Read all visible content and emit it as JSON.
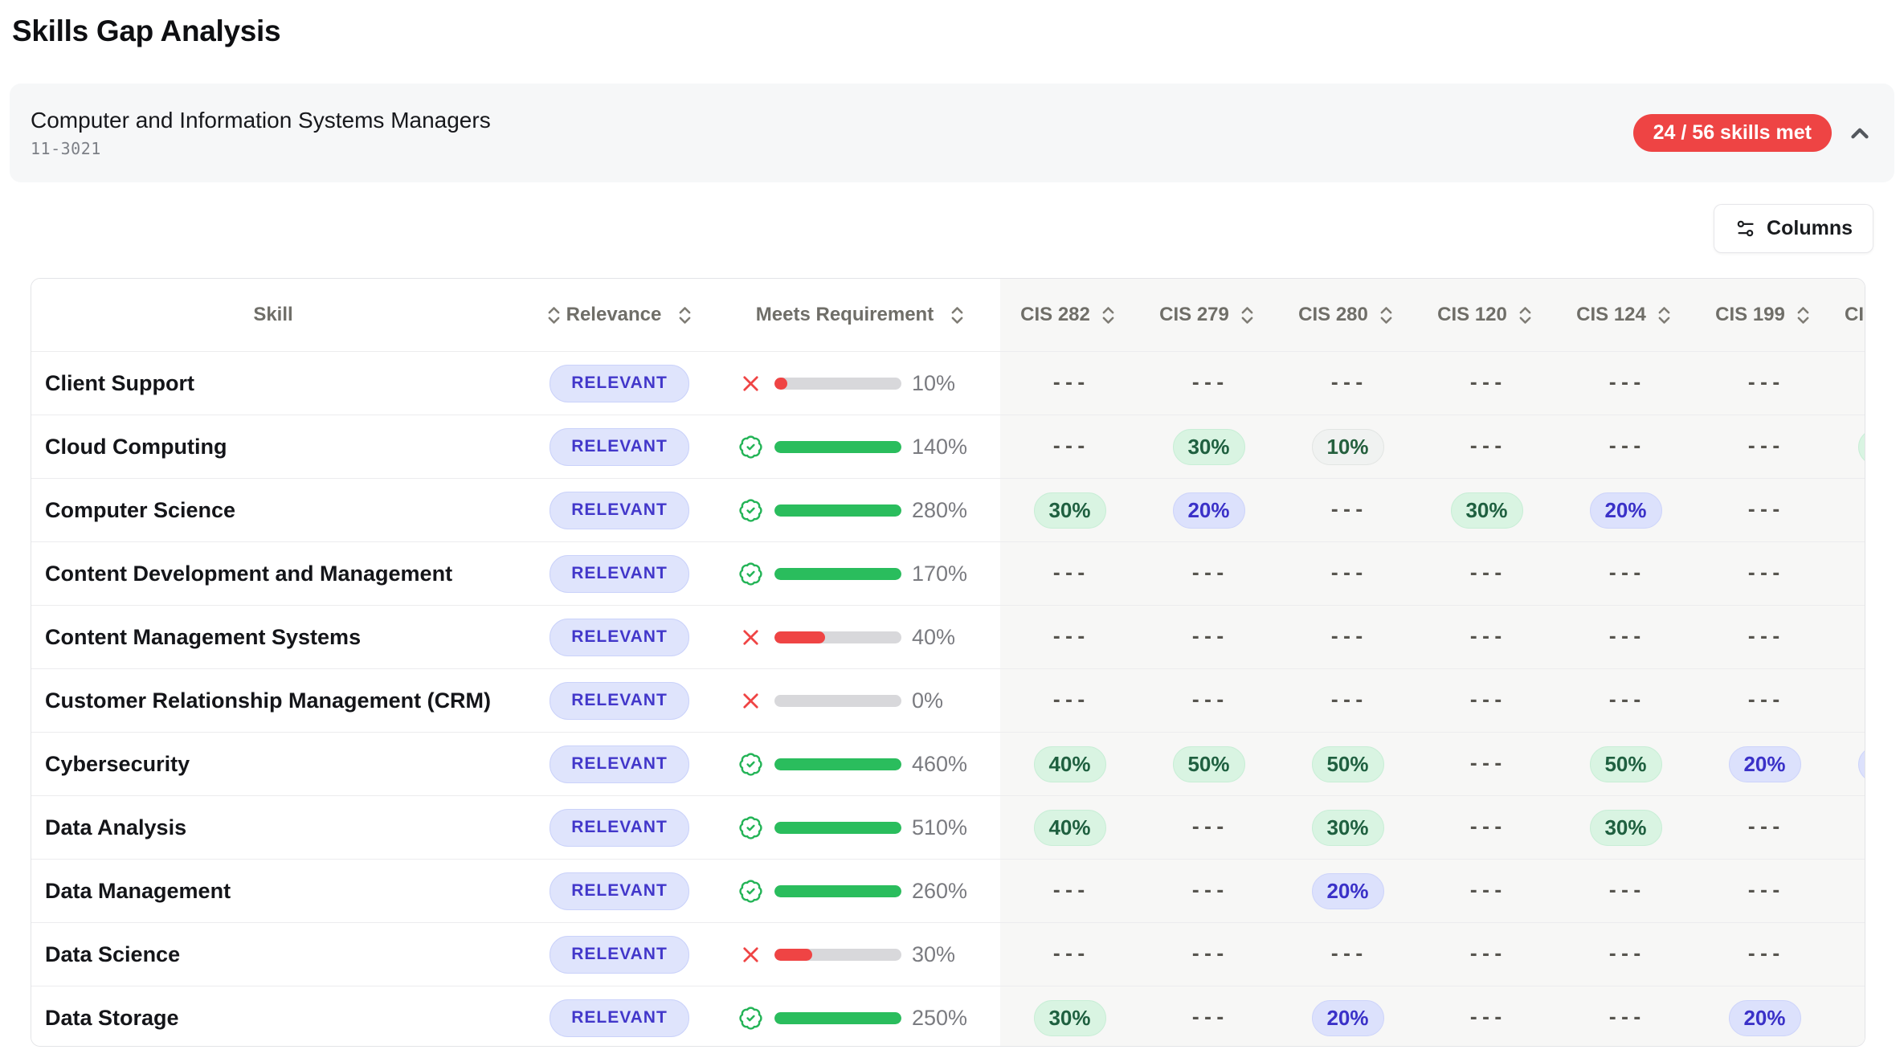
{
  "page_title": "Skills Gap Analysis",
  "occupation": {
    "name": "Computer and Information Systems Managers",
    "soc_code": "11-3021",
    "skills_met_badge": "24 / 56 skills met"
  },
  "toolbar": {
    "columns_button": "Columns"
  },
  "table": {
    "headers": {
      "skill": "Skill",
      "relevance": "Relevance",
      "meets_requirement": "Meets Requirement"
    },
    "course_columns": [
      "CIS 282",
      "CIS 279",
      "CIS 280",
      "CIS 120",
      "CIS 124",
      "CIS 199"
    ],
    "truncated_course_column": "CI",
    "empty_cell": "---",
    "rows": [
      {
        "skill": "Client Support",
        "relevance": "RELEVANT",
        "met": false,
        "meets_percent": "10%",
        "bar_percent": 10,
        "courses": [
          null,
          null,
          null,
          null,
          null,
          null
        ],
        "truncated_cell": null
      },
      {
        "skill": "Cloud Computing",
        "relevance": "RELEVANT",
        "met": true,
        "meets_percent": "140%",
        "bar_percent": 100,
        "courses": [
          null,
          {
            "value": "30%",
            "variant": "green"
          },
          {
            "value": "10%",
            "variant": "pale"
          },
          null,
          null,
          null
        ],
        "truncated_cell": {
          "variant": "green"
        }
      },
      {
        "skill": "Computer Science",
        "relevance": "RELEVANT",
        "met": true,
        "meets_percent": "280%",
        "bar_percent": 100,
        "courses": [
          {
            "value": "30%",
            "variant": "green"
          },
          {
            "value": "20%",
            "variant": "blue"
          },
          null,
          {
            "value": "30%",
            "variant": "green"
          },
          {
            "value": "20%",
            "variant": "blue"
          },
          null
        ],
        "truncated_cell": null
      },
      {
        "skill": "Content Development and Management",
        "relevance": "RELEVANT",
        "met": true,
        "meets_percent": "170%",
        "bar_percent": 100,
        "courses": [
          null,
          null,
          null,
          null,
          null,
          null
        ],
        "truncated_cell": null
      },
      {
        "skill": "Content Management Systems",
        "relevance": "RELEVANT",
        "met": false,
        "meets_percent": "40%",
        "bar_percent": 40,
        "courses": [
          null,
          null,
          null,
          null,
          null,
          null
        ],
        "truncated_cell": null
      },
      {
        "skill": "Customer Relationship Management (CRM)",
        "relevance": "RELEVANT",
        "met": false,
        "meets_percent": "0%",
        "bar_percent": 0,
        "courses": [
          null,
          null,
          null,
          null,
          null,
          null
        ],
        "truncated_cell": null
      },
      {
        "skill": "Cybersecurity",
        "relevance": "RELEVANT",
        "met": true,
        "meets_percent": "460%",
        "bar_percent": 100,
        "courses": [
          {
            "value": "40%",
            "variant": "green"
          },
          {
            "value": "50%",
            "variant": "green"
          },
          {
            "value": "50%",
            "variant": "green"
          },
          null,
          {
            "value": "50%",
            "variant": "green"
          },
          {
            "value": "20%",
            "variant": "blue"
          }
        ],
        "truncated_cell": {
          "variant": "blue"
        }
      },
      {
        "skill": "Data Analysis",
        "relevance": "RELEVANT",
        "met": true,
        "meets_percent": "510%",
        "bar_percent": 100,
        "courses": [
          {
            "value": "40%",
            "variant": "green"
          },
          null,
          {
            "value": "30%",
            "variant": "green"
          },
          null,
          {
            "value": "30%",
            "variant": "green"
          },
          null
        ],
        "truncated_cell": null
      },
      {
        "skill": "Data Management",
        "relevance": "RELEVANT",
        "met": true,
        "meets_percent": "260%",
        "bar_percent": 100,
        "courses": [
          null,
          null,
          {
            "value": "20%",
            "variant": "blue"
          },
          null,
          null,
          null
        ],
        "truncated_cell": null
      },
      {
        "skill": "Data Science",
        "relevance": "RELEVANT",
        "met": false,
        "meets_percent": "30%",
        "bar_percent": 30,
        "courses": [
          null,
          null,
          null,
          null,
          null,
          null
        ],
        "truncated_cell": null
      },
      {
        "skill": "Data Storage",
        "relevance": "RELEVANT",
        "met": true,
        "meets_percent": "250%",
        "bar_percent": 100,
        "courses": [
          {
            "value": "30%",
            "variant": "green"
          },
          null,
          {
            "value": "20%",
            "variant": "blue"
          },
          null,
          null,
          {
            "value": "20%",
            "variant": "blue"
          }
        ],
        "truncated_cell": null
      }
    ]
  },
  "colors": {
    "badge_red": "#ee4444",
    "relevant_bg": "#dfe4fc",
    "relevant_text": "#4237ca",
    "relevant_border": "#cad2fa",
    "bar_track": "#d8d8db",
    "bar_met": "#2abd5d",
    "bar_unmet": "#ef4444",
    "met_icon": "#24b457",
    "unmet_icon": "#ef4444",
    "course_area_bg": "#f7f7f6",
    "pill": {
      "green": {
        "bg": "#d9f4e2",
        "text": "#1f6040",
        "border": "#c8eed6"
      },
      "blue": {
        "bg": "#dce1fc",
        "text": "#3a31c8",
        "border": "#cdd4fa"
      },
      "pale": {
        "bg": "#f0f2f1",
        "text": "#25603e",
        "border": "#e2e5e3"
      }
    }
  }
}
